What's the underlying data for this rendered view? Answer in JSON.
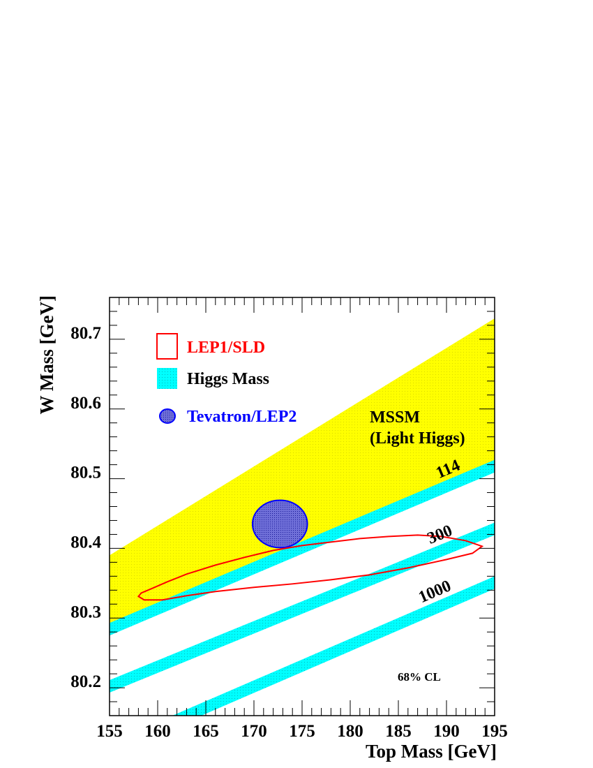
{
  "chart_data": {
    "type": "scatter",
    "xlabel": "Top Mass [GeV]",
    "ylabel": "W Mass [GeV]",
    "xlim": [
      155,
      195
    ],
    "ylim": [
      80.15,
      80.75
    ],
    "xticks": [
      "155",
      "160",
      "165",
      "170",
      "175",
      "180",
      "185",
      "190",
      "195"
    ],
    "yticks": [
      "80.2",
      "80.3",
      "80.4",
      "80.5",
      "80.6",
      "80.7"
    ],
    "legend": [
      {
        "label": "LEP1/SLD",
        "color": "#ff0000",
        "style": "outline"
      },
      {
        "label": "Higgs Mass",
        "color": "#00ffff",
        "style": "band"
      },
      {
        "label": "Tevatron/LEP2",
        "color": "#0000ff",
        "style": "filled-ellipse"
      }
    ],
    "regions": [
      {
        "label_line1": "MSSM",
        "label_line2": "(Light Higgs)",
        "color": "#ffff00",
        "lower_edge": [
          [
            155,
            80.28
          ],
          [
            195,
            80.515
          ]
        ],
        "upper_edge": [
          [
            155,
            80.38
          ],
          [
            195,
            80.72
          ]
        ]
      }
    ],
    "higgs_bands": [
      {
        "label": "114",
        "center": [
          [
            155,
            80.274
          ],
          [
            195,
            80.508
          ]
        ],
        "half_width": 0.009
      },
      {
        "label": "300",
        "center": [
          [
            155,
            80.192
          ],
          [
            195,
            80.418
          ]
        ],
        "half_width": 0.009
      },
      {
        "label": "1000",
        "center": [
          [
            155,
            80.102
          ],
          [
            195,
            80.341
          ]
        ],
        "half_width": 0.009
      }
    ],
    "tevatron_lep2_ellipse": {
      "center": [
        172.7,
        80.425
      ],
      "radius_x": 2.85,
      "radius_y": 0.034
    },
    "lep1_sld_contour": [
      [
        158.0,
        80.321
      ],
      [
        158.3,
        80.326
      ],
      [
        159.5,
        80.333
      ],
      [
        161.0,
        80.342
      ],
      [
        163.0,
        80.353
      ],
      [
        166.0,
        80.366
      ],
      [
        169.0,
        80.377
      ],
      [
        172.0,
        80.387
      ],
      [
        175.0,
        80.394
      ],
      [
        178.0,
        80.399
      ],
      [
        181.0,
        80.404
      ],
      [
        184.0,
        80.407
      ],
      [
        187.0,
        80.409
      ],
      [
        189.5,
        80.407
      ],
      [
        192.0,
        80.401
      ],
      [
        193.7,
        80.393
      ],
      [
        192.7,
        80.383
      ],
      [
        190.0,
        80.374
      ],
      [
        186.0,
        80.362
      ],
      [
        182.0,
        80.352
      ],
      [
        178.0,
        80.345
      ],
      [
        174.0,
        80.339
      ],
      [
        170.0,
        80.334
      ],
      [
        166.0,
        80.328
      ],
      [
        163.0,
        80.322
      ],
      [
        160.5,
        80.316
      ],
      [
        158.6,
        80.316
      ],
      [
        158.0,
        80.321
      ]
    ],
    "annotation": "68% CL"
  }
}
